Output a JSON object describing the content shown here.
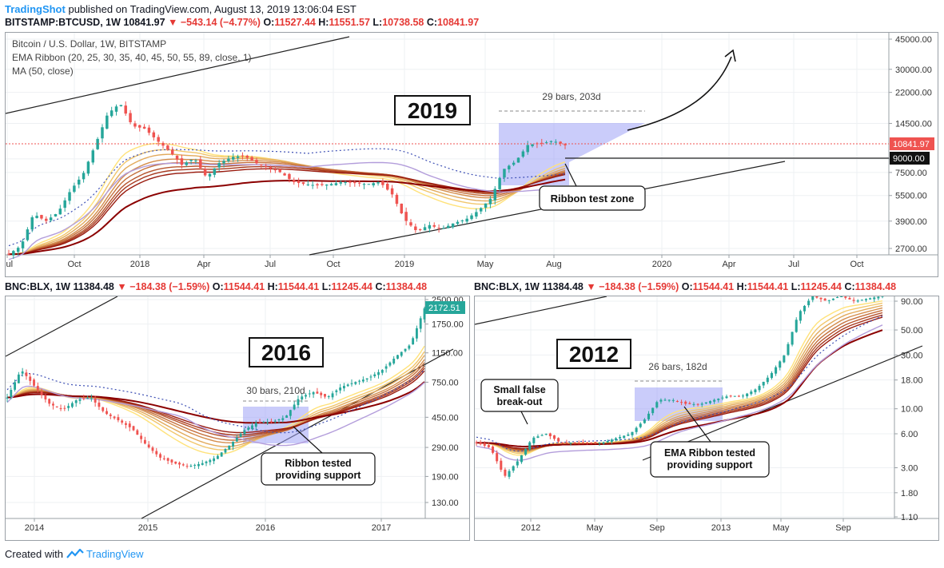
{
  "header": {
    "brand": "TradingShot",
    "published": "published on TradingView.com, August 13, 2019 13:06:04 EST",
    "symbol_line": "BITSTAMP:BTCUSD, 1W",
    "price": "10841.97",
    "change": "−543.14 (−4.77%)",
    "o_label": "O:",
    "o_val": "11527.44",
    "h_label": "H:",
    "h_val": "11551.57",
    "l_label": "L:",
    "l_val": "10738.58",
    "c_label": "C:",
    "c_val": "10841.97"
  },
  "top_legend": {
    "line1": "Bitcoin / U.S. Dollar, 1W, BITSTAMP",
    "line2": "EMA Ribbon (20, 25, 30, 35, 40, 45, 50, 55, 89, close, 1)",
    "line3": "MA (50, close)"
  },
  "bl_header": {
    "symbol": "BNC:BLX, 1W",
    "price": "11384.48",
    "change": "−184.38 (−1.59%)",
    "o": "11544.41",
    "h": "11544.41",
    "l": "11245.44",
    "c": "11384.48"
  },
  "br_header": {
    "symbol": "BNC:BLX, 1W",
    "price": "11384.48",
    "change": "−184.38 (−1.59%)",
    "o": "11544.41",
    "h": "11544.41",
    "l": "11245.44",
    "c": "11384.48"
  },
  "footer": {
    "created": "Created with",
    "brand": "TradingView"
  },
  "colors": {
    "up": "#26a69a",
    "down": "#ef5350",
    "ma": "#b39ddb",
    "box": "#9fa3f5",
    "ribbon_dark": "#8b0000",
    "ribbon_light": "#ffe27a"
  },
  "chart_data": [
    {
      "type": "candlestick",
      "title": "2019",
      "symbol": "BITSTAMP:BTCUSD, 1W",
      "y_scale": "log",
      "y_ticks": [
        "45000.00",
        "30000.00",
        "22000.00",
        "14500.00",
        "9000.00",
        "7500.00",
        "5500.00",
        "3900.00",
        "2700.00"
      ],
      "last_price_label": "10841.97",
      "level_label": "9000.00",
      "x_ticks": [
        "Jul",
        "Oct",
        "2018",
        "Apr",
        "Jul",
        "Oct",
        "2019",
        "May",
        "Aug",
        "2020",
        "Apr",
        "Jul",
        "Oct"
      ],
      "close_path": [
        2500,
        2800,
        4300,
        3900,
        4400,
        5900,
        7300,
        10900,
        16500,
        19000,
        14000,
        13500,
        11500,
        10000,
        8300,
        9100,
        7000,
        8500,
        9200,
        9400,
        8500,
        8000,
        7500,
        6600,
        6400,
        6300,
        6400,
        6600,
        6500,
        6400,
        6600,
        5600,
        4000,
        3400,
        3700,
        3500,
        3800,
        4000,
        4500,
        5300,
        7800,
        8700,
        10900,
        11000,
        11500,
        10800
      ],
      "measure_label": "29 bars, 203d",
      "annotations": [
        "Ribbon test zone"
      ]
    },
    {
      "type": "candlestick",
      "title": "2016",
      "symbol": "BNC:BLX, 1W",
      "y_scale": "log",
      "y_ticks": [
        "2500.00",
        "1750.00",
        "1150.00",
        "750.00",
        "450.00",
        "290.00",
        "190.00",
        "130.00"
      ],
      "last_price_label": "2172.51",
      "x_ticks": [
        "2014",
        "2015",
        "2016",
        "2017"
      ],
      "close_path": [
        600,
        900,
        700,
        550,
        500,
        580,
        600,
        480,
        430,
        380,
        300,
        250,
        230,
        220,
        230,
        250,
        300,
        370,
        420,
        420,
        450,
        600,
        650,
        600,
        700,
        750,
        800,
        900,
        1100,
        1300,
        2200
      ],
      "measure_label": "30 bars, 210d",
      "annotations": [
        "Ribbon tested providing support"
      ]
    },
    {
      "type": "candlestick",
      "title": "2012",
      "symbol": "BNC:BLX, 1W",
      "y_scale": "log",
      "y_ticks": [
        "90.00",
        "50.00",
        "30.00",
        "18.00",
        "10.00",
        "6.00",
        "3.00",
        "1.80",
        "1.10"
      ],
      "x_ticks": [
        "2012",
        "May",
        "Sep",
        "2013",
        "May",
        "Sep"
      ],
      "close_path": [
        5,
        4.5,
        2.5,
        3.5,
        5.5,
        6,
        5,
        5,
        5,
        5,
        5.5,
        6,
        8,
        12,
        12,
        11,
        11,
        12,
        13,
        13,
        15,
        20,
        30,
        70,
        100,
        90,
        100,
        90,
        95,
        100
      ],
      "measure_label": "26 bars, 182d",
      "annotations": [
        "Small false break-out",
        "EMA Ribbon tested providing support"
      ]
    }
  ]
}
